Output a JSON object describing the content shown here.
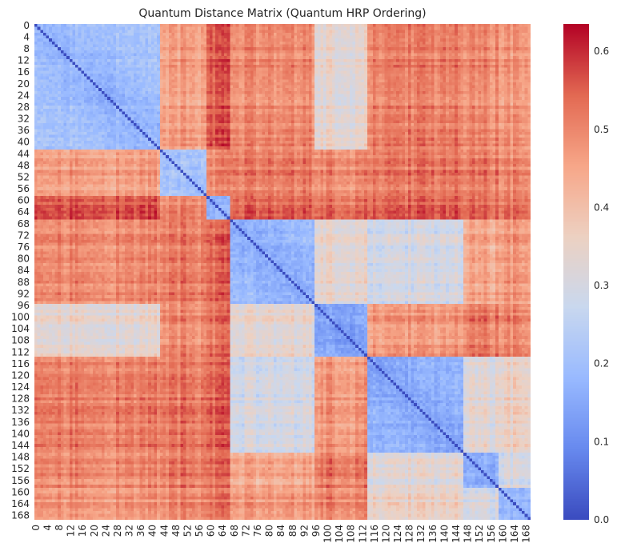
{
  "chart_data": {
    "type": "heatmap",
    "title": "Quantum Distance Matrix (Quantum HRP Ordering)",
    "xlabel": "",
    "ylabel": "",
    "n": 170,
    "x_tick_labels": [
      "0",
      "4",
      "8",
      "12",
      "16",
      "20",
      "24",
      "28",
      "32",
      "36",
      "40",
      "44",
      "48",
      "52",
      "56",
      "60",
      "64",
      "68",
      "72",
      "76",
      "80",
      "84",
      "88",
      "92",
      "96",
      "100",
      "104",
      "108",
      "112",
      "116",
      "120",
      "124",
      "128",
      "132",
      "136",
      "140",
      "144",
      "148",
      "152",
      "156",
      "160",
      "164",
      "168"
    ],
    "y_tick_labels": [
      "0",
      "4",
      "8",
      "12",
      "16",
      "20",
      "24",
      "28",
      "32",
      "36",
      "40",
      "44",
      "48",
      "52",
      "56",
      "60",
      "64",
      "68",
      "72",
      "76",
      "80",
      "84",
      "88",
      "92",
      "96",
      "100",
      "104",
      "108",
      "112",
      "116",
      "120",
      "124",
      "128",
      "132",
      "136",
      "140",
      "144",
      "148",
      "152",
      "156",
      "160",
      "164",
      "168"
    ],
    "clusters": [
      {
        "start": 0,
        "end": 42,
        "within": 0.17
      },
      {
        "start": 43,
        "end": 58,
        "within": 0.2
      },
      {
        "start": 59,
        "end": 66,
        "within": 0.15
      },
      {
        "start": 67,
        "end": 95,
        "within": 0.15
      },
      {
        "start": 96,
        "end": 113,
        "within": 0.13
      },
      {
        "start": 114,
        "end": 146,
        "within": 0.14
      },
      {
        "start": 147,
        "end": 158,
        "within": 0.15
      },
      {
        "start": 159,
        "end": 169,
        "within": 0.17
      }
    ],
    "between_cluster_distance": [
      [
        0.17,
        0.47,
        0.56,
        0.5,
        0.34,
        0.52,
        0.5,
        0.48
      ],
      [
        0.47,
        0.2,
        0.5,
        0.52,
        0.5,
        0.53,
        0.52,
        0.5
      ],
      [
        0.56,
        0.5,
        0.15,
        0.54,
        0.53,
        0.55,
        0.53,
        0.52
      ],
      [
        0.5,
        0.52,
        0.54,
        0.15,
        0.34,
        0.3,
        0.45,
        0.47
      ],
      [
        0.34,
        0.5,
        0.53,
        0.34,
        0.13,
        0.48,
        0.52,
        0.5
      ],
      [
        0.52,
        0.53,
        0.55,
        0.3,
        0.48,
        0.14,
        0.33,
        0.36
      ],
      [
        0.5,
        0.52,
        0.53,
        0.45,
        0.52,
        0.33,
        0.15,
        0.3
      ],
      [
        0.48,
        0.5,
        0.52,
        0.47,
        0.5,
        0.36,
        0.3,
        0.17
      ]
    ],
    "colorscale": {
      "name": "coolwarm",
      "min": 0.0,
      "max": 0.635,
      "stops": [
        "#3b4cc0",
        "#688aef",
        "#99baff",
        "#c9d8ef",
        "#edd1c2",
        "#f7a789",
        "#e36a53",
        "#b40426"
      ]
    },
    "colorbar_ticks": [
      "0.0",
      "0.1",
      "0.2",
      "0.3",
      "0.4",
      "0.5",
      "0.6"
    ],
    "colorbar_tick_values": [
      0.0,
      0.1,
      0.2,
      0.3,
      0.4,
      0.5,
      0.6
    ]
  }
}
